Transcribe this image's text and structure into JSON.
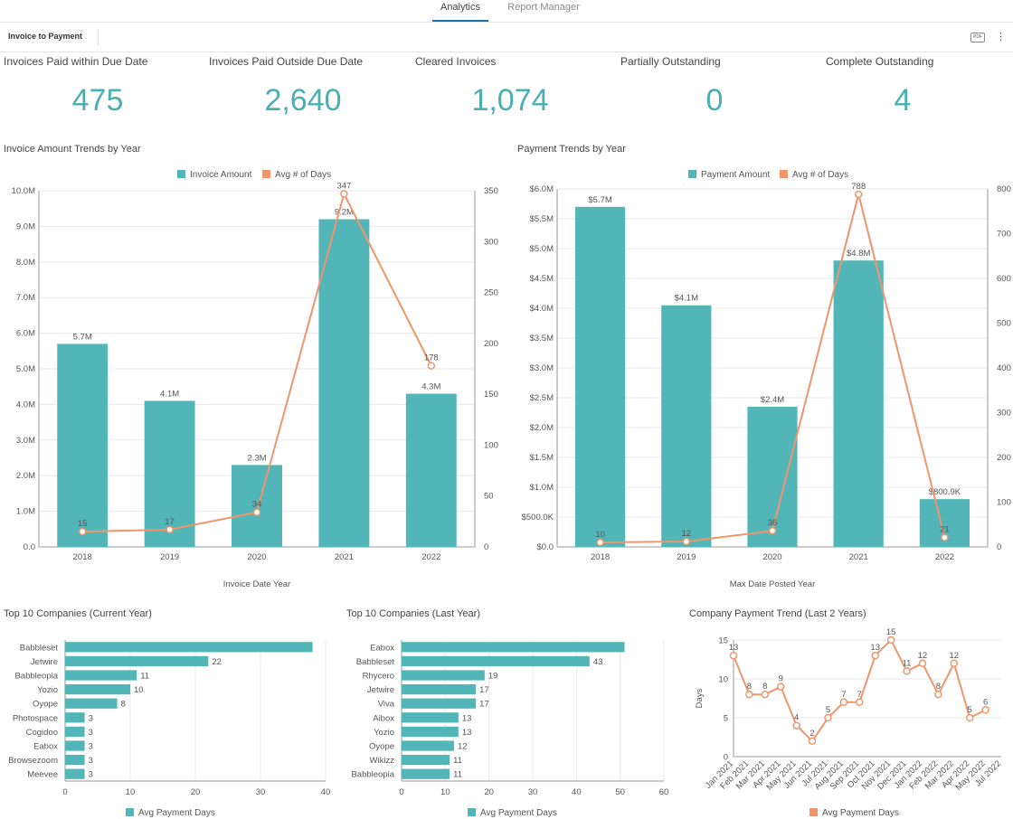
{
  "tabs": [
    {
      "label": "Analytics",
      "active": true
    },
    {
      "label": "Report Manager",
      "active": false
    }
  ],
  "toolbar": {
    "title": "Invoice to Payment",
    "pdf_label": "PDF",
    "more_label": "⋮"
  },
  "kpis": [
    {
      "label": "Invoices Paid within Due Date",
      "value": "475"
    },
    {
      "label": "Invoices Paid Outside Due Date",
      "value": "2,640"
    },
    {
      "label": "Cleared Invoices",
      "value": "1,074"
    },
    {
      "label": "Partially Outstanding",
      "value": "0"
    },
    {
      "label": "Complete Outstanding",
      "value": "4"
    }
  ],
  "colors": {
    "teal": "#52b5b8",
    "orange": "#f0956b",
    "grid": "#e8e8e8",
    "axis": "#555555"
  },
  "chart_data": [
    {
      "type": "bar",
      "title": "Invoice Amount Trends by Year",
      "legend": [
        "Invoice Amount",
        "Avg # of Days"
      ],
      "xlabel": "Invoice Date Year",
      "categories": [
        "2018",
        "2019",
        "2020",
        "2021",
        "2022"
      ],
      "series": [
        {
          "name": "Invoice Amount",
          "type": "bar",
          "values": [
            5.7,
            4.1,
            2.3,
            9.2,
            4.3
          ],
          "labels": [
            "5.7M",
            "4.1M",
            "2.3M",
            "9.2M",
            "4.3M"
          ]
        },
        {
          "name": "Avg # of Days",
          "type": "line",
          "values": [
            15,
            17,
            34,
            347,
            178
          ],
          "labels": [
            "15",
            "17",
            "34",
            "347",
            "178"
          ]
        }
      ],
      "ylim": [
        0,
        10
      ],
      "yticks": [
        "0.0",
        "1.0M",
        "2.0M",
        "3.0M",
        "4.0M",
        "5.0M",
        "6.0M",
        "7.0M",
        "8.0M",
        "9.0M",
        "10.0M"
      ],
      "y2lim": [
        0,
        350
      ],
      "y2ticks": [
        "0",
        "50",
        "100",
        "150",
        "200",
        "250",
        "300",
        "350"
      ]
    },
    {
      "type": "bar",
      "title": "Payment Trends by Year",
      "legend": [
        "Payment Amount",
        "Avg # of Days"
      ],
      "xlabel": "Max Date Posted Year",
      "categories": [
        "2018",
        "2019",
        "2020",
        "2021",
        "2022"
      ],
      "series": [
        {
          "name": "Payment Amount",
          "type": "bar",
          "values": [
            5.7,
            4.05,
            2.35,
            4.8,
            0.8009
          ],
          "labels": [
            "$5.7M",
            "$4.1M",
            "$2.4M",
            "$4.8M",
            "$800.9K"
          ]
        },
        {
          "name": "Avg # of Days",
          "type": "line",
          "values": [
            10,
            12,
            36,
            788,
            21
          ],
          "labels": [
            "10",
            "12",
            "36",
            "788",
            "21"
          ]
        }
      ],
      "ylim": [
        0,
        6
      ],
      "yticks": [
        "$0.0",
        "$500.0K",
        "$1.0M",
        "$1.5M",
        "$2.0M",
        "$2.5M",
        "$3.0M",
        "$3.5M",
        "$4.0M",
        "$4.5M",
        "$5.0M",
        "$5.5M",
        "$6.0M"
      ],
      "y2lim": [
        0,
        800
      ],
      "y2ticks": [
        "0",
        "100",
        "200",
        "300",
        "400",
        "500",
        "600",
        "700",
        "800"
      ]
    },
    {
      "type": "bar",
      "orientation": "horizontal",
      "title": "Top 10 Companies (Current Year)",
      "legend": [
        "Avg Payment Days"
      ],
      "categories": [
        "Babbleset",
        "Jetwire",
        "Babbleopia",
        "Yozio",
        "Oyope",
        "Photospace",
        "Cogidoo",
        "Eabox",
        "Browsezoom",
        "Meevee"
      ],
      "values": [
        38,
        22,
        11,
        10,
        8,
        3,
        3,
        3,
        3,
        3
      ],
      "labels": [
        "",
        "22",
        "11",
        "10",
        "8",
        "3",
        "3",
        "3",
        "3",
        "3"
      ],
      "xlim": [
        0,
        40
      ],
      "xticks": [
        "0",
        "10",
        "20",
        "30",
        "40"
      ]
    },
    {
      "type": "bar",
      "orientation": "horizontal",
      "title": "Top 10 Companies (Last Year)",
      "legend": [
        "Avg Payment Days"
      ],
      "categories": [
        "Eabox",
        "Babbleset",
        "Rhycero",
        "Jetwire",
        "Viva",
        "Aibox",
        "Yozio",
        "Oyope",
        "Wikizz",
        "Babbleopia"
      ],
      "values": [
        51,
        43,
        19,
        17,
        17,
        13,
        13,
        12,
        11,
        11
      ],
      "labels": [
        "",
        "43",
        "19",
        "17",
        "17",
        "13",
        "13",
        "12",
        "11",
        "11"
      ],
      "xlim": [
        0,
        60
      ],
      "xticks": [
        "0",
        "10",
        "20",
        "30",
        "40",
        "50",
        "60"
      ]
    },
    {
      "type": "line",
      "title": "Company Payment Trend (Last 2 Years)",
      "legend": [
        "Avg Payment Days"
      ],
      "ylabel": "Days",
      "x": [
        "Jan 2021",
        "Feb 2021",
        "Mar 2021",
        "Apr 2021",
        "May 2021",
        "Jun 2021",
        "Jul 2021",
        "Aug 2021",
        "Sep 2021",
        "Oct 2021",
        "Nov 2021",
        "Dec 2021",
        "Jan 2022",
        "Feb 2022",
        "Mar 2022",
        "Apr 2022",
        "May 2022",
        "Jul 2022"
      ],
      "values": [
        13,
        8,
        8,
        9,
        4,
        2,
        5,
        7,
        7,
        13,
        15,
        11,
        12,
        8,
        12,
        5,
        6,
        null
      ],
      "labels": [
        "13",
        "8",
        "8",
        "9",
        "4",
        "2",
        "5",
        "7",
        "7",
        "13",
        "15",
        "11",
        "12",
        "8",
        "12",
        "5",
        "6",
        ""
      ],
      "ylim": [
        0,
        15
      ],
      "yticks": [
        "0",
        "5",
        "10",
        "15"
      ]
    }
  ]
}
